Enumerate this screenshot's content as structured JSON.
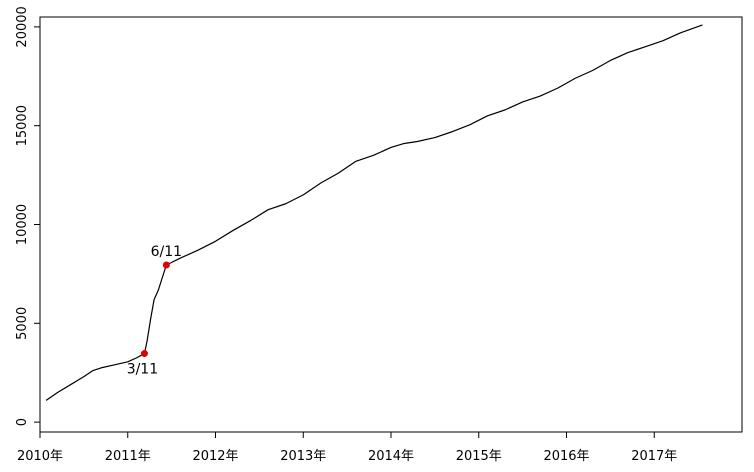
{
  "chart_data": {
    "type": "line",
    "title": "",
    "xlabel": "",
    "ylabel": "",
    "xlim": [
      2010.0,
      2018.0
    ],
    "ylim": [
      -500,
      20500
    ],
    "x_ticks": [
      2010,
      2011,
      2012,
      2013,
      2014,
      2015,
      2016,
      2017
    ],
    "x_tick_labels": [
      "2010年",
      "2011年",
      "2012年",
      "2013年",
      "2014年",
      "2015年",
      "2016年",
      "2017年"
    ],
    "y_ticks": [
      0,
      5000,
      10000,
      15000,
      20000
    ],
    "y_tick_labels": [
      "0",
      "5000",
      "10000",
      "15000",
      "20000"
    ],
    "grid": false,
    "legend": "none",
    "line_color": "#000000",
    "marker_color": "#e00000",
    "series": [
      {
        "x": [
          2010.07,
          2010.2,
          2010.35,
          2010.5,
          2010.6,
          2010.7,
          2010.85,
          2011.0,
          2011.1,
          2011.19,
          2011.22,
          2011.26,
          2011.3,
          2011.35,
          2011.4,
          2011.44,
          2011.6,
          2011.8,
          2012.0,
          2012.2,
          2012.4,
          2012.6,
          2012.8,
          2013.0,
          2013.2,
          2013.4,
          2013.6,
          2013.8,
          2014.0,
          2014.15,
          2014.3,
          2014.5,
          2014.7,
          2014.9,
          2015.1,
          2015.3,
          2015.5,
          2015.7,
          2015.9,
          2016.1,
          2016.3,
          2016.5,
          2016.7,
          2016.9,
          2017.1,
          2017.3,
          2017.55
        ],
        "y": [
          1100,
          1500,
          1900,
          2300,
          2600,
          2750,
          2900,
          3050,
          3250,
          3470,
          4100,
          5200,
          6200,
          6700,
          7400,
          7950,
          8300,
          8700,
          9150,
          9700,
          10200,
          10750,
          11050,
          11500,
          12100,
          12600,
          13200,
          13500,
          13900,
          14100,
          14200,
          14400,
          14700,
          15050,
          15500,
          15800,
          16200,
          16500,
          16900,
          17400,
          17800,
          18300,
          18700,
          19000,
          19300,
          19700,
          20100
        ]
      }
    ],
    "annotations": [
      {
        "label": "3/11",
        "x": 2011.19,
        "y": 3470
      },
      {
        "label": "6/11",
        "x": 2011.44,
        "y": 7950
      }
    ]
  }
}
